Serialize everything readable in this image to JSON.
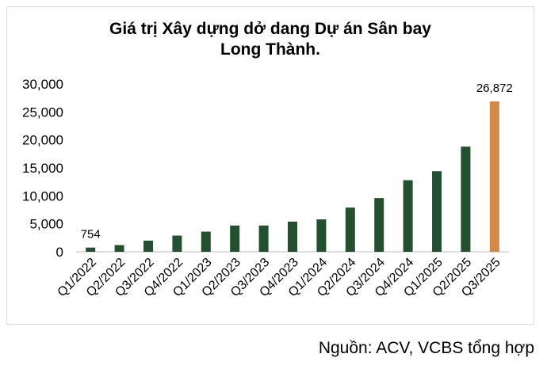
{
  "chart_data": {
    "type": "bar",
    "title_lines": [
      "Giá trị Xây dựng dở dang Dự án Sân bay",
      "Long Thành."
    ],
    "categories": [
      "Q1/2022",
      "Q2/2022",
      "Q3/2022",
      "Q4/2022",
      "Q1/2023",
      "Q2/2023",
      "Q3/2023",
      "Q4/2023",
      "Q1/2024",
      "Q2/2024",
      "Q3/2024",
      "Q4/2024",
      "Q1/2025",
      "Q2/2025",
      "Q3/2025"
    ],
    "values": [
      754,
      1200,
      2000,
      2900,
      3600,
      4700,
      4700,
      5400,
      5800,
      7900,
      9600,
      12800,
      14400,
      18800,
      26872
    ],
    "data_labels": [
      {
        "index": 0,
        "text": "754"
      },
      {
        "index": 14,
        "text": "26,872"
      }
    ],
    "yticks": [
      "0",
      "5,000",
      "10,000",
      "15,000",
      "20,000",
      "25,000",
      "30,000"
    ],
    "ylim": [
      0,
      30000
    ],
    "ystep": 5000,
    "grid": false,
    "legend": "none",
    "colors": {
      "bar": "#23502f",
      "highlight": "#d48a45",
      "axis": "#bfbfbf",
      "text": "#000000"
    },
    "highlight_index": 14
  },
  "source": "Nguồn: ACV, VCBS tổng hợp"
}
